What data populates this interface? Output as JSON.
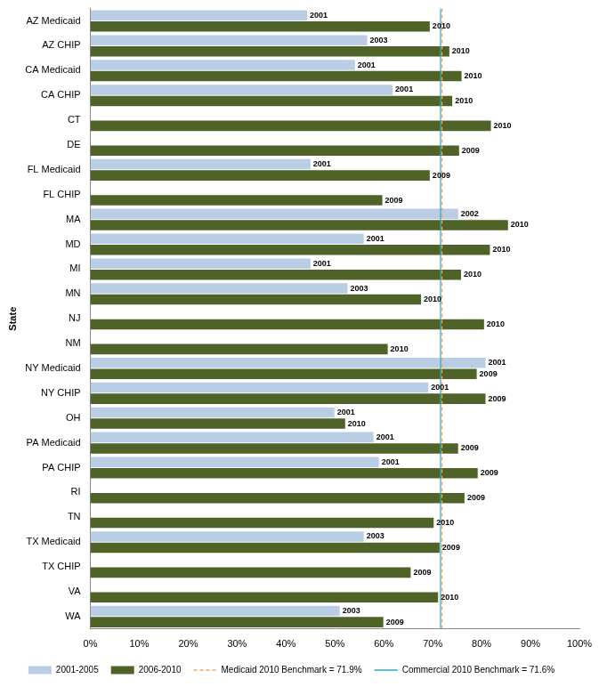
{
  "chart_data": {
    "type": "bar",
    "orientation": "horizontal",
    "y_label": "State",
    "categories": [
      "AZ Medicaid",
      "AZ CHIP",
      "CA Medicaid",
      "CA CHIP",
      "CT",
      "DE",
      "FL Medicaid",
      "FL CHIP",
      "MA",
      "MD",
      "MI",
      "MN",
      "NJ",
      "NM",
      "NY Medicaid",
      "NY CHIP",
      "OH",
      "PA Medicaid",
      "PA CHIP",
      "RI",
      "TN",
      "TX Medicaid",
      "TX CHIP",
      "VA",
      "WA"
    ],
    "series": [
      {
        "name": "2001-2005",
        "color": "#b9cde5",
        "values": [
          44.3,
          56.6,
          54.1,
          61.8,
          null,
          null,
          45.0,
          null,
          75.2,
          55.9,
          45.0,
          52.6,
          null,
          null,
          80.8,
          69.1,
          49.9,
          57.9,
          59.0,
          null,
          null,
          55.9,
          null,
          null,
          51.0
        ],
        "labels": [
          "2001",
          "2003",
          "2001",
          "2001",
          null,
          null,
          "2001",
          null,
          "2002",
          "2001",
          "2001",
          "2003",
          null,
          null,
          "2001",
          "2001",
          "2001",
          "2001",
          "2001",
          null,
          null,
          "2003",
          null,
          null,
          "2003"
        ]
      },
      {
        "name": "2006-2010",
        "color": "#4f6228",
        "values": [
          69.4,
          73.4,
          75.9,
          74.0,
          81.9,
          75.4,
          69.4,
          59.7,
          85.4,
          81.7,
          75.8,
          67.6,
          80.5,
          60.8,
          79.0,
          80.8,
          52.1,
          75.2,
          79.2,
          76.5,
          70.2,
          71.4,
          65.5,
          71.1,
          59.9
        ],
        "labels": [
          "2010",
          "2010",
          "2010",
          "2010",
          "2010",
          "2009",
          "2009",
          "2009",
          "2010",
          "2010",
          "2010",
          "2010",
          "2010",
          "2010",
          "2009",
          "2009",
          "2010",
          "2009",
          "2009",
          "2009",
          "2010",
          "2009",
          "2009",
          "2010",
          "2009"
        ]
      }
    ],
    "reference_lines": [
      {
        "value": 71.9,
        "label": "Medicaid 2010 Benchmark = 71.9%",
        "color": "#f4a460",
        "line_style": "dashed"
      },
      {
        "value": 71.6,
        "label": "Commercial 2010 Benchmark = 71.6%",
        "color": "#31a9b8",
        "line_style": "solid"
      }
    ],
    "xlim": [
      0,
      100
    ],
    "xticks": [
      {
        "value": 0,
        "label": "0%"
      },
      {
        "value": 10,
        "label": "10%"
      },
      {
        "value": 20,
        "label": "20%"
      },
      {
        "value": 30,
        "label": "30%"
      },
      {
        "value": 40,
        "label": "40%"
      },
      {
        "value": 50,
        "label": "50%"
      },
      {
        "value": 60,
        "label": "60%"
      },
      {
        "value": 70,
        "label": "70%"
      },
      {
        "value": 80,
        "label": "80%"
      },
      {
        "value": 90,
        "label": "90%"
      },
      {
        "value": 100,
        "label": "100%"
      }
    ],
    "grid": false,
    "legend": "bottom"
  }
}
